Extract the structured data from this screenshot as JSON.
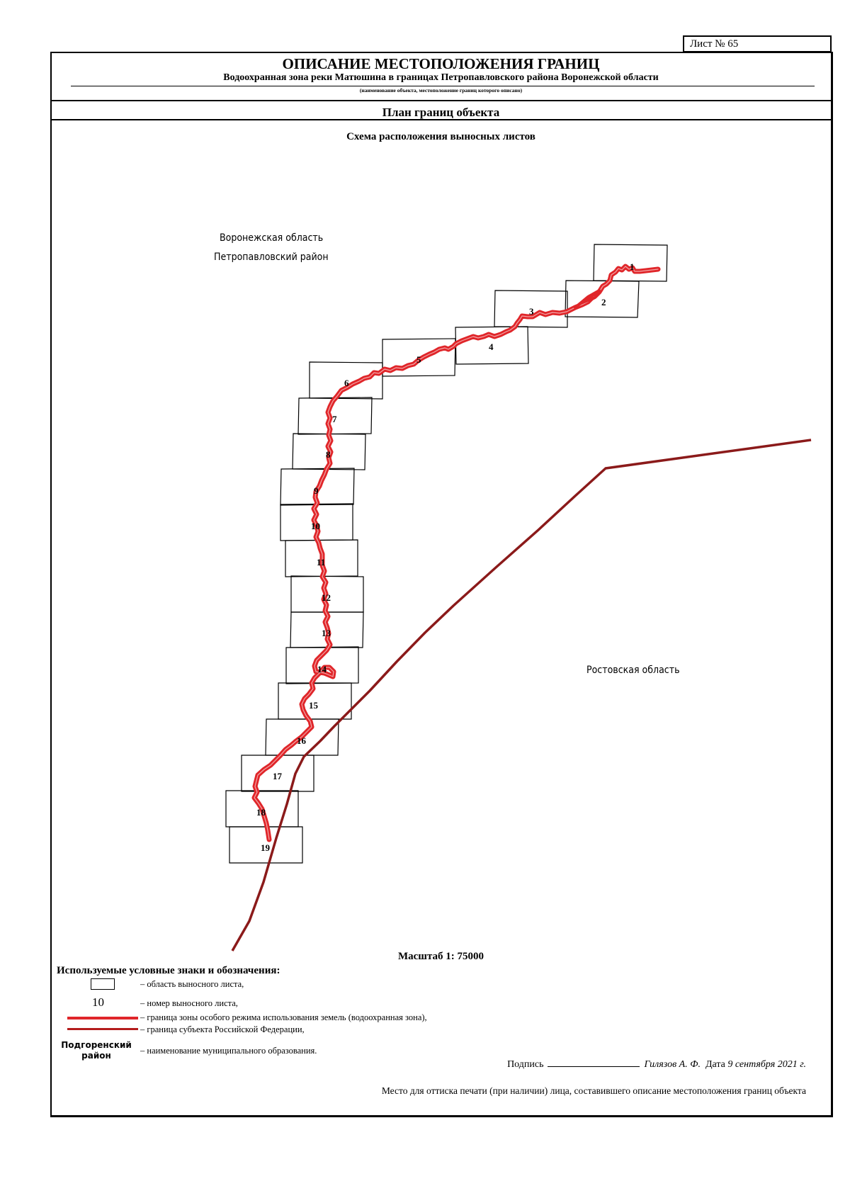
{
  "sheet_label": "Лист № 65",
  "header": {
    "title": "ОПИСАНИЕ МЕСТОПОЛОЖЕНИЯ ГРАНИЦ",
    "subtitle": "Водоохранная зона реки Матюшина в границах Петропавловского района Воронежской области",
    "note": "(наименование объекта, местоположение границ которого описано)"
  },
  "plan_title": "План границ объекта",
  "scheme_title": "Схема расположения выносных листов",
  "map": {
    "region_north_line1": "Воронежская область",
    "region_north_line2": "Петропавловский район",
    "region_south": "Ростовская область",
    "sheet_numbers": [
      "1",
      "2",
      "3",
      "4",
      "5",
      "6",
      "7",
      "8",
      "9",
      "10",
      "11",
      "12",
      "13",
      "14",
      "15",
      "16",
      "17",
      "18",
      "19"
    ],
    "colors": {
      "water_zone": "#e0262a",
      "subject_border": "#8b1a1a",
      "sheet_frame": "#000000"
    }
  },
  "scale": "Масштаб 1: 75000",
  "legend": {
    "title": "Используемые условные знаки и обозначения:",
    "items": [
      {
        "symbol": "rectangle",
        "text": "– область выносного листа,"
      },
      {
        "symbol": "number",
        "sample": "10",
        "text": "– номер выносного листа,"
      },
      {
        "symbol": "red-line",
        "text": "– граница зоны особого режима использования земель (водоохранная зона),"
      },
      {
        "symbol": "dark-red-line",
        "text": "– граница субъекта Российской Федерации,"
      },
      {
        "symbol": "municipality",
        "sample_line1": "Подгоренский",
        "sample_line2": "район",
        "text": "– наименование муниципального образования."
      }
    ]
  },
  "signature": {
    "label": "Подпись",
    "name": "Гилязов А. Ф.",
    "date_label": "Дата",
    "date": "9 сентября 2021 г."
  },
  "stamp_text": "Место для оттиска печати (при наличии) лица, составившего описание местоположения границ объекта"
}
